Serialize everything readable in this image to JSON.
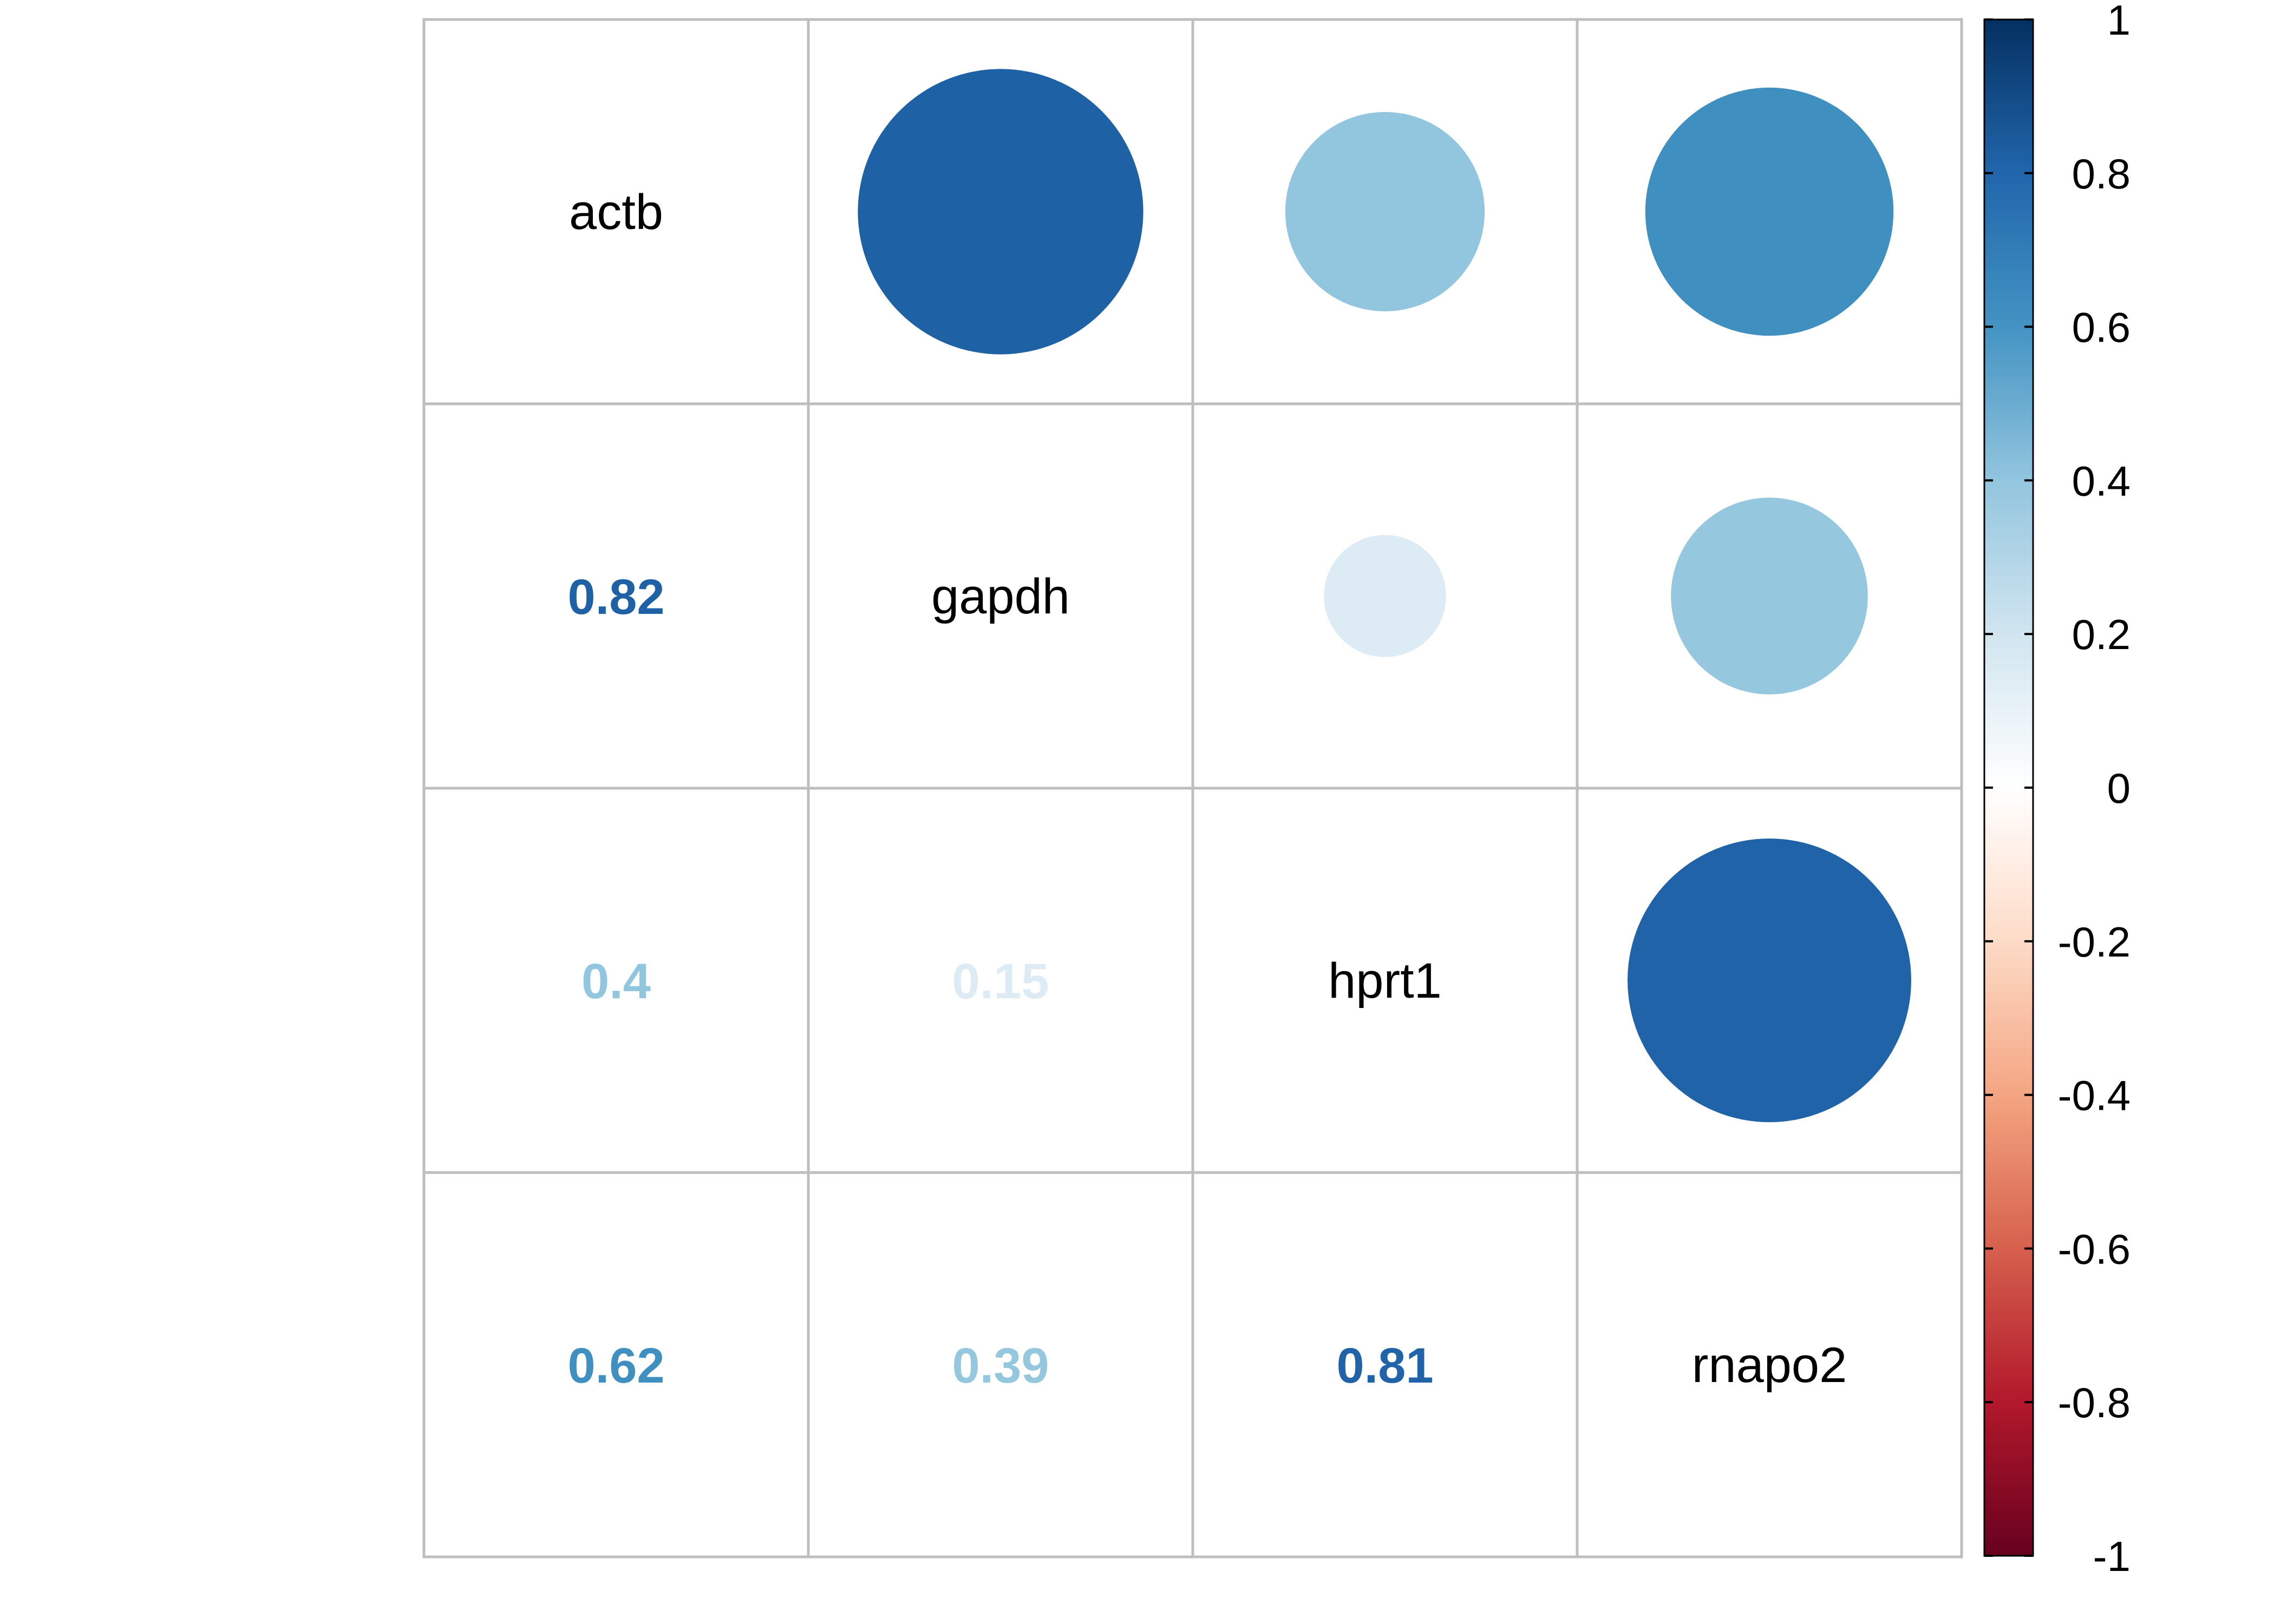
{
  "chart_data": {
    "type": "heatmap",
    "variables": [
      "actb",
      "gapdh",
      "hprt1",
      "rnapo2"
    ],
    "matrix": [
      [
        1,
        0.82,
        0.4,
        0.62
      ],
      [
        0.82,
        1,
        0.15,
        0.39
      ],
      [
        0.4,
        0.15,
        1,
        0.81
      ],
      [
        0.62,
        0.39,
        0.81,
        1
      ]
    ],
    "upper_style": "circle",
    "lower_style": "number",
    "diagonal": "variable-names",
    "lower_labels": [
      {
        "row": 1,
        "col": 0,
        "text": "0.82"
      },
      {
        "row": 2,
        "col": 0,
        "text": "0.4"
      },
      {
        "row": 2,
        "col": 1,
        "text": "0.15"
      },
      {
        "row": 3,
        "col": 0,
        "text": "0.62"
      },
      {
        "row": 3,
        "col": 1,
        "text": "0.39"
      },
      {
        "row": 3,
        "col": 2,
        "text": "0.81"
      }
    ],
    "colorbar": {
      "range": [
        -1,
        1
      ],
      "ticks": [
        "1",
        "0.8",
        "0.6",
        "0.4",
        "0.2",
        "0",
        "-0.2",
        "-0.4",
        "-0.6",
        "-0.8",
        "-1"
      ],
      "stops": [
        {
          "value": -1.0,
          "color": "#67001F"
        },
        {
          "value": -0.8,
          "color": "#B2182B"
        },
        {
          "value": -0.6,
          "color": "#D6604D"
        },
        {
          "value": -0.4,
          "color": "#F4A582"
        },
        {
          "value": -0.2,
          "color": "#FDDBC7"
        },
        {
          "value": 0.0,
          "color": "#FFFFFF"
        },
        {
          "value": 0.2,
          "color": "#D1E5F0"
        },
        {
          "value": 0.4,
          "color": "#92C5DE"
        },
        {
          "value": 0.6,
          "color": "#4393C3"
        },
        {
          "value": 0.8,
          "color": "#2166AC"
        },
        {
          "value": 1.0,
          "color": "#053061"
        }
      ]
    },
    "grid": true,
    "grid_color": "#BEBEBE",
    "title": "",
    "xlabel": "",
    "ylabel": ""
  }
}
